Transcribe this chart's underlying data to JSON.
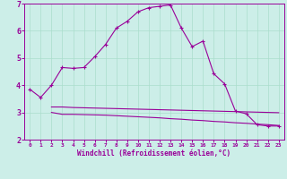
{
  "xlabel": "Windchill (Refroidissement éolien,°C)",
  "bg_color": "#cceee8",
  "line_color": "#990099",
  "grid_color": "#aaddcc",
  "xlim": [
    -0.5,
    23.5
  ],
  "ylim": [
    2,
    7
  ],
  "xticks": [
    0,
    1,
    2,
    3,
    4,
    5,
    6,
    7,
    8,
    9,
    10,
    11,
    12,
    13,
    14,
    15,
    16,
    17,
    18,
    19,
    20,
    21,
    22,
    23
  ],
  "yticks": [
    2,
    3,
    4,
    5,
    6,
    7
  ],
  "series1_x": [
    0,
    1,
    2,
    3,
    4,
    5,
    6,
    7,
    8,
    9,
    10,
    11,
    12,
    13,
    14,
    15,
    16,
    17,
    18,
    19,
    20,
    21,
    22,
    23
  ],
  "series1_y": [
    3.85,
    3.55,
    4.0,
    4.65,
    4.62,
    4.65,
    5.05,
    5.5,
    6.1,
    6.35,
    6.7,
    6.85,
    6.9,
    6.95,
    6.1,
    5.42,
    5.62,
    4.42,
    4.05,
    3.05,
    2.95,
    2.55,
    2.5,
    2.5
  ],
  "series2_x": [
    2,
    3,
    4,
    5,
    6,
    7,
    8,
    9,
    10,
    11,
    12,
    13,
    14,
    15,
    16,
    17,
    18,
    19,
    20,
    21,
    22,
    23
  ],
  "series2_y": [
    3.2,
    3.2,
    3.18,
    3.17,
    3.16,
    3.15,
    3.14,
    3.13,
    3.12,
    3.11,
    3.1,
    3.09,
    3.08,
    3.07,
    3.06,
    3.05,
    3.04,
    3.03,
    3.02,
    3.01,
    3.0,
    2.99
  ],
  "series3_x": [
    2,
    3,
    4,
    5,
    6,
    7,
    8,
    9,
    10,
    11,
    12,
    13,
    14,
    15,
    16,
    17,
    18,
    19,
    20,
    21,
    22,
    23
  ],
  "series3_y": [
    3.0,
    2.93,
    2.93,
    2.92,
    2.91,
    2.9,
    2.88,
    2.86,
    2.84,
    2.82,
    2.8,
    2.77,
    2.75,
    2.72,
    2.7,
    2.67,
    2.65,
    2.62,
    2.6,
    2.57,
    2.55,
    2.52
  ],
  "xlabel_fontsize": 5.5,
  "tick_fontsize_x": 4.5,
  "tick_fontsize_y": 6.0
}
